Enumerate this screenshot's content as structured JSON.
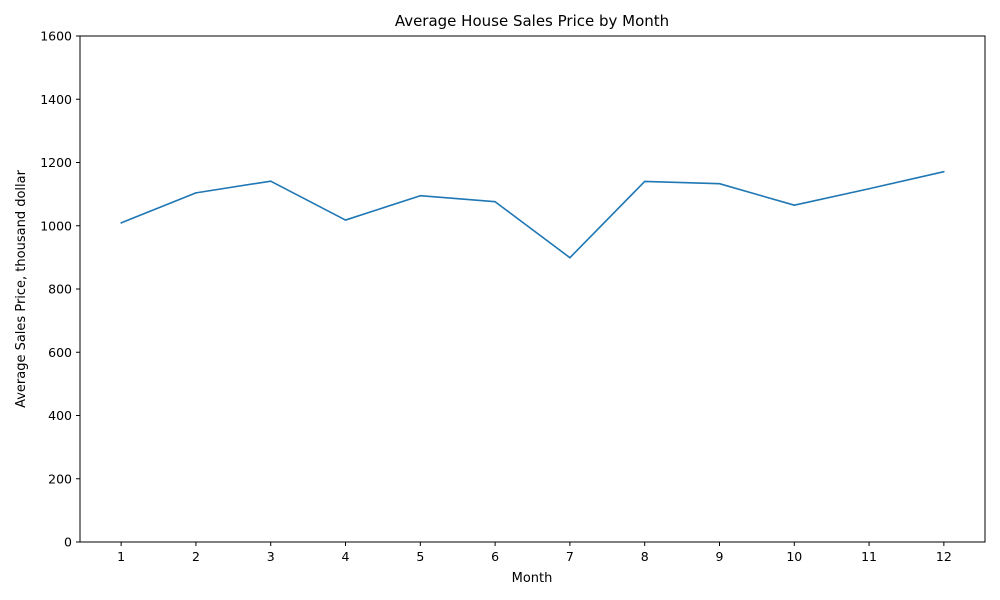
{
  "chart_data": {
    "type": "line",
    "title": "Average House Sales Price by Month",
    "xlabel": "Month",
    "ylabel": "Average Sales Price, thousand dollar",
    "x": [
      1,
      2,
      3,
      4,
      5,
      6,
      7,
      8,
      9,
      10,
      11,
      12
    ],
    "series": [
      {
        "values": [
          1009,
          1104,
          1141,
          1018,
          1095,
          1076,
          899,
          1140,
          1133,
          1065,
          1117,
          1171
        ],
        "color": "#1f77b4"
      }
    ],
    "yticks": [
      0,
      200,
      400,
      600,
      800,
      1000,
      1200,
      1400,
      1600
    ],
    "ylim": [
      0,
      1600
    ],
    "xlim": [
      0.45,
      12.55
    ],
    "grid": false,
    "legend": "none"
  }
}
